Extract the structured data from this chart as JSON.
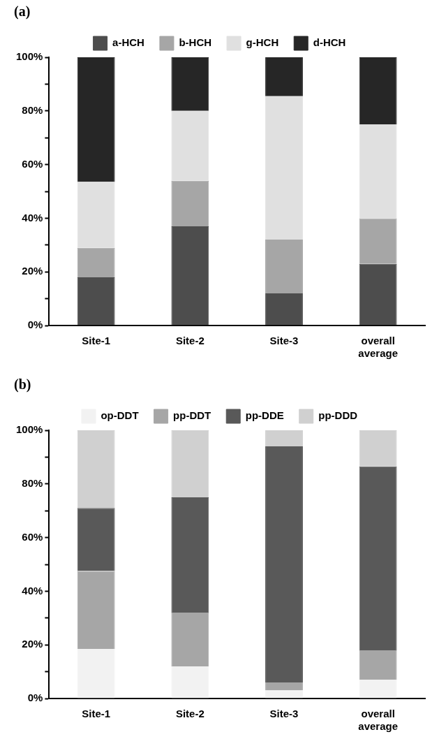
{
  "chart_data": [
    {
      "type": "bar",
      "title": "(a)",
      "stacked": true,
      "categories": [
        "Site-1",
        "Site-2",
        "Site-3",
        "overall average"
      ],
      "series": [
        {
          "name": "a-HCH",
          "color": "#4d4d4d",
          "values": [
            18,
            37,
            12,
            23
          ]
        },
        {
          "name": "b-HCH",
          "color": "#a6a6a6",
          "values": [
            11,
            17,
            20,
            17
          ]
        },
        {
          "name": "g-HCH",
          "color": "#e0e0e0",
          "values": [
            24.5,
            26,
            53.5,
            35
          ]
        },
        {
          "name": "d-HCH",
          "color": "#262626",
          "values": [
            46.5,
            20,
            14.5,
            25
          ]
        }
      ],
      "ylim": [
        0,
        100
      ],
      "yticks": [
        {
          "value": 0,
          "label": "0%"
        },
        {
          "value": 10,
          "label": null
        },
        {
          "value": 20,
          "label": "20%"
        },
        {
          "value": 30,
          "label": null
        },
        {
          "value": 40,
          "label": "40%"
        },
        {
          "value": 50,
          "label": null
        },
        {
          "value": 60,
          "label": "60%"
        },
        {
          "value": 70,
          "label": null
        },
        {
          "value": 80,
          "label": "80%"
        },
        {
          "value": 90,
          "label": null
        },
        {
          "value": 100,
          "label": "100%"
        }
      ],
      "grid": false,
      "legend": "top"
    },
    {
      "type": "bar",
      "title": "(b)",
      "stacked": true,
      "categories": [
        "Site-1",
        "Site-2",
        "Site-3",
        "overall average"
      ],
      "series": [
        {
          "name": "op-DDT",
          "color": "#f2f2f2",
          "values": [
            18.5,
            12,
            3,
            7
          ]
        },
        {
          "name": "pp-DDT",
          "color": "#a6a6a6",
          "values": [
            29,
            20,
            3,
            11
          ]
        },
        {
          "name": "pp-DDE",
          "color": "#595959",
          "values": [
            23.5,
            43,
            88,
            68.5
          ]
        },
        {
          "name": "pp-DDD",
          "color": "#d0d0d0",
          "values": [
            29,
            25,
            6,
            13.5
          ]
        }
      ],
      "ylim": [
        0,
        100
      ],
      "yticks": [
        {
          "value": 0,
          "label": "0%"
        },
        {
          "value": 10,
          "label": null
        },
        {
          "value": 20,
          "label": "20%"
        },
        {
          "value": 30,
          "label": null
        },
        {
          "value": 40,
          "label": "40%"
        },
        {
          "value": 50,
          "label": null
        },
        {
          "value": 60,
          "label": "60%"
        },
        {
          "value": 70,
          "label": null
        },
        {
          "value": 80,
          "label": "80%"
        },
        {
          "value": 90,
          "label": null
        },
        {
          "value": 100,
          "label": "100%"
        }
      ],
      "grid": false,
      "legend": "top"
    }
  ]
}
